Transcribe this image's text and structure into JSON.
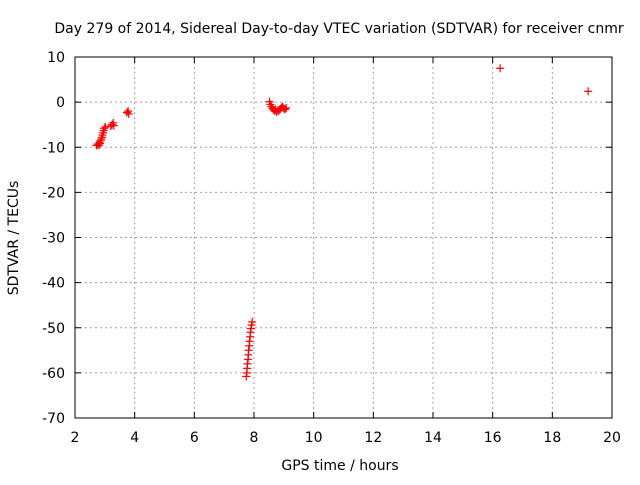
{
  "chart_data": {
    "type": "scatter",
    "title": "Day 279 of 2014, Sidereal Day-to-day VTEC variation (SDTVAR) for receiver cnmr",
    "xlabel": "GPS time / hours",
    "ylabel": "SDTVAR / TECUs",
    "xlim": [
      2,
      20
    ],
    "ylim": [
      -70,
      10
    ],
    "xticks": [
      "2",
      "4",
      "6",
      "8",
      "10",
      "12",
      "14",
      "16",
      "18",
      "20"
    ],
    "yticks": [
      "10",
      "0",
      "-10",
      "-20",
      "-30",
      "-40",
      "-50",
      "-60",
      "-70"
    ],
    "grid": true,
    "legend": "none",
    "marker": "plus",
    "colors": {
      "points": "#ff0000",
      "grid": "#a0a0a0",
      "axes": "#000000"
    },
    "series": [
      {
        "points": [
          [
            2.72,
            -9.6
          ],
          [
            2.76,
            -9.3
          ],
          [
            2.8,
            -9.6
          ],
          [
            2.82,
            -9.0
          ],
          [
            2.84,
            -9.2
          ],
          [
            2.86,
            -8.6
          ],
          [
            2.88,
            -8.2
          ],
          [
            2.9,
            -7.8
          ],
          [
            2.92,
            -7.3
          ],
          [
            2.94,
            -6.8
          ],
          [
            2.96,
            -6.3
          ],
          [
            2.98,
            -5.8
          ],
          [
            3.02,
            -5.5
          ],
          [
            3.2,
            -5.3
          ],
          [
            3.24,
            -5.0
          ],
          [
            3.28,
            -4.6
          ],
          [
            3.3,
            -5.2
          ],
          [
            3.74,
            -2.3
          ],
          [
            3.78,
            -2.0
          ],
          [
            3.8,
            -2.6
          ],
          [
            8.52,
            0.1
          ],
          [
            8.55,
            -0.5
          ],
          [
            8.58,
            -1.0
          ],
          [
            8.62,
            -1.4
          ],
          [
            8.66,
            -1.7
          ],
          [
            8.7,
            -2.0
          ],
          [
            8.72,
            -1.6
          ],
          [
            8.76,
            -2.2
          ],
          [
            8.8,
            -1.8
          ],
          [
            8.84,
            -1.9
          ],
          [
            8.88,
            -1.5
          ],
          [
            8.92,
            -1.2
          ],
          [
            8.96,
            -1.0
          ],
          [
            9.0,
            -1.4
          ],
          [
            9.04,
            -1.6
          ],
          [
            9.08,
            -1.3
          ],
          [
            7.74,
            -60.8
          ],
          [
            7.76,
            -60.0
          ],
          [
            7.77,
            -59.0
          ],
          [
            7.78,
            -58.0
          ],
          [
            7.8,
            -57.0
          ],
          [
            7.81,
            -56.0
          ],
          [
            7.82,
            -55.0
          ],
          [
            7.84,
            -54.0
          ],
          [
            7.85,
            -53.0
          ],
          [
            7.87,
            -52.0
          ],
          [
            7.88,
            -51.0
          ],
          [
            7.9,
            -50.2
          ],
          [
            7.92,
            -49.4
          ],
          [
            7.94,
            -48.7
          ],
          [
            16.25,
            7.5
          ],
          [
            19.2,
            2.4
          ]
        ]
      }
    ]
  }
}
